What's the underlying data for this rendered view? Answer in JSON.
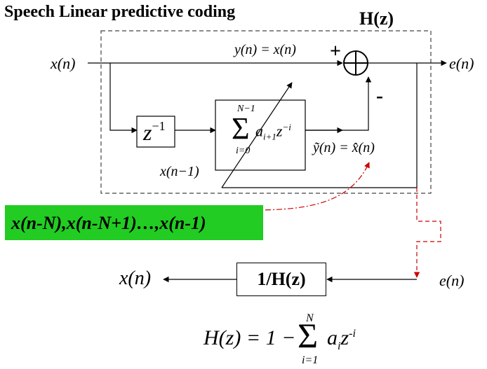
{
  "title": "Speech Linear predictive coding",
  "hz_label": "H(z)",
  "plus_sign": "+",
  "minus_sign": "-",
  "signals": {
    "input": "x(n)",
    "passthrough": "y(n) = x(n)",
    "error_out": "e(n)",
    "delayed": "x(n−1)",
    "prediction": "ỹ(n) = x̂(n)"
  },
  "delay_block": {
    "base": "z",
    "exp": "−1"
  },
  "predictor_block": {
    "upper_limit": "N−1",
    "lower_limit": "i=0",
    "sigma": "Σ",
    "coef": "a",
    "coef_sub": "i+1",
    "z": "z",
    "z_exp": "−i"
  },
  "history_label": "x(n-N),x(n-N+1)…,x(n-1)",
  "colors": {
    "history_bg": "#22cc22",
    "dashed_red": "#cc0000",
    "frame": "#444444"
  },
  "inverse": {
    "block": "1/H(z)",
    "input": "e(n)",
    "output": "x(n)"
  },
  "formula": {
    "lhs": "H(z) = 1 −",
    "sigma": "Σ",
    "upper": "N",
    "lower": "i=1",
    "term": "a",
    "term_sub": "i",
    "z": "z",
    "z_exp": "-i"
  }
}
